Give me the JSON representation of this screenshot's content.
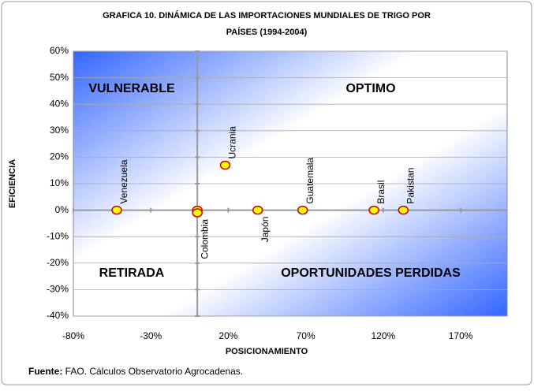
{
  "chart_data": {
    "type": "scatter",
    "title": [
      "GRAFICA 10. DINÁMICA DE LAS IMPORTACIONES MUNDIALES DE TRIGO POR",
      "PAÍSES (1994-2004)"
    ],
    "x_label": "POSICIONAMIENTO",
    "y_label": "EFICIENCIA",
    "point_labels": [
      "Venezuela",
      null,
      "Colombia",
      "Ucrania",
      "Japón",
      "Guatemala",
      "Brasil",
      "Pakistan"
    ],
    "x": [
      -52,
      0,
      0,
      18,
      39,
      68,
      114,
      133
    ],
    "values": [
      0,
      0,
      -1,
      17,
      0,
      0,
      0,
      0
    ],
    "color": "#ffff00",
    "edge_color": "#cc0000",
    "xlim": [
      -80,
      200
    ],
    "ylim": [
      -40,
      60
    ],
    "xticks": [
      {
        "value": -80,
        "label": "-80%"
      },
      {
        "value": -30,
        "label": "-30%"
      },
      {
        "value": 20,
        "label": "20%"
      },
      {
        "value": 70,
        "label": "70%"
      },
      {
        "value": 120,
        "label": "120%"
      },
      {
        "value": 170,
        "label": "170%"
      }
    ],
    "yticks": [
      {
        "value": -40,
        "label": "-40%"
      },
      {
        "value": -30,
        "label": "-30%"
      },
      {
        "value": -20,
        "label": "-20%"
      },
      {
        "value": -10,
        "label": "-10%"
      },
      {
        "value": 0,
        "label": "0%"
      },
      {
        "value": 10,
        "label": "10%"
      },
      {
        "value": 20,
        "label": "20%"
      },
      {
        "value": 30,
        "label": "30%"
      },
      {
        "value": 40,
        "label": "40%"
      },
      {
        "value": 50,
        "label": "50%"
      },
      {
        "value": 60,
        "label": "60%"
      }
    ],
    "grid": true,
    "quadrants": [
      "VULNERABLE",
      "OPTIMO",
      "RETIRADA",
      "OPORTUNIDADES PERDIDAS"
    ],
    "source_label": "Fuente:",
    "source_text": " FAO. Cálculos Observatorio Agrocadenas."
  }
}
